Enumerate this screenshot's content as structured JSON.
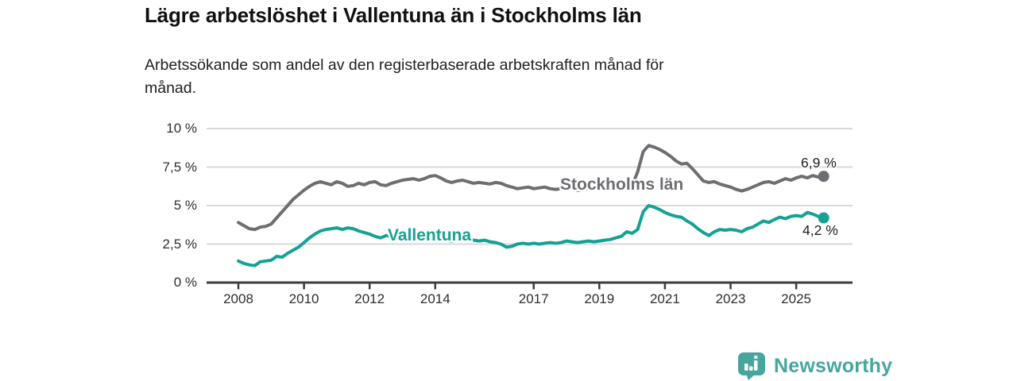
{
  "header": {
    "title": "Lägre arbetslöshet i Vallentuna än i Stockholms län",
    "subtitle_line1": "Arbetssökande som andel av den registerbaserade arbetskraften månad för",
    "subtitle_line2": "månad."
  },
  "colors": {
    "stockholm_line": "#6d6d72",
    "vallentuna_line": "#15a193",
    "axis": "#3c3c3c",
    "grid": "#d9d9d9",
    "text": "#1c1c1c",
    "brand_teal": "#45a69e"
  },
  "annotations": {
    "stockholm_series_label": "Stockholms län",
    "vallentuna_series_label": "Vallentuna",
    "stockholm_end_value_label": "6,9 %",
    "vallentuna_end_value_label": "4,2 %"
  },
  "footer": {
    "brand_name": "Newsworthy",
    "brand_icon": "bar-chart-speech-bubble-icon"
  },
  "chart_data": {
    "type": "line",
    "title": "Lägre arbetslöshet i Vallentuna än i Stockholms län",
    "subtitle": "Arbetssökande som andel av den registerbaserade arbetskraften månad för månad.",
    "xlabel": "",
    "ylabel": "",
    "grid": "horizontal",
    "legend_position": "inline-labels",
    "ylim": [
      0,
      10
    ],
    "xlim": [
      2007.05,
      2026.7
    ],
    "yticks": [
      {
        "value": 0,
        "label": "0 %"
      },
      {
        "value": 2.5,
        "label": "2,5 %"
      },
      {
        "value": 5,
        "label": "5 %"
      },
      {
        "value": 7.5,
        "label": "7,5 %"
      },
      {
        "value": 10,
        "label": "10 %"
      }
    ],
    "xticks": [
      {
        "value": 2008,
        "label": "2008"
      },
      {
        "value": 2010,
        "label": "2010"
      },
      {
        "value": 2012,
        "label": "2012"
      },
      {
        "value": 2014,
        "label": "2014"
      },
      {
        "value": 2017,
        "label": "2017"
      },
      {
        "value": 2019,
        "label": "2019"
      },
      {
        "value": 2021,
        "label": "2021"
      },
      {
        "value": 2023,
        "label": "2023"
      },
      {
        "value": 2025,
        "label": "2025"
      }
    ],
    "x_start": 2008.0,
    "x_step": 0.1667,
    "x_unit": "decimal year (monthly registry data, approx. bi-monthly samples)",
    "series": [
      {
        "name": "Stockholms län",
        "color": "#6d6d72",
        "end_value": 6.9,
        "end_label": "6,9 %",
        "y": [
          3.9,
          3.7,
          3.5,
          3.45,
          3.6,
          3.65,
          3.8,
          4.2,
          4.6,
          5.0,
          5.4,
          5.7,
          6.0,
          6.25,
          6.45,
          6.55,
          6.45,
          6.35,
          6.55,
          6.45,
          6.25,
          6.3,
          6.45,
          6.35,
          6.5,
          6.55,
          6.35,
          6.3,
          6.45,
          6.55,
          6.65,
          6.7,
          6.75,
          6.65,
          6.75,
          6.9,
          6.95,
          6.8,
          6.6,
          6.5,
          6.6,
          6.65,
          6.55,
          6.45,
          6.5,
          6.45,
          6.4,
          6.5,
          6.45,
          6.3,
          6.2,
          6.1,
          6.15,
          6.2,
          6.1,
          6.15,
          6.2,
          6.1,
          6.05,
          6.1,
          6.15,
          6.1,
          6.0,
          6.05,
          6.1,
          6.15,
          6.2,
          6.15,
          6.1,
          6.15,
          6.2,
          6.25,
          6.3,
          7.2,
          8.5,
          8.9,
          8.8,
          8.65,
          8.45,
          8.2,
          7.9,
          7.7,
          7.75,
          7.4,
          7.0,
          6.6,
          6.5,
          6.55,
          6.4,
          6.3,
          6.2,
          6.05,
          5.95,
          6.05,
          6.2,
          6.35,
          6.5,
          6.55,
          6.45,
          6.6,
          6.75,
          6.65,
          6.8,
          6.9,
          6.8,
          6.95,
          6.85,
          6.9
        ]
      },
      {
        "name": "Vallentuna",
        "color": "#15a193",
        "end_value": 4.2,
        "end_label": "4,2 %",
        "y": [
          1.4,
          1.25,
          1.15,
          1.1,
          1.35,
          1.4,
          1.45,
          1.7,
          1.65,
          1.9,
          2.1,
          2.3,
          2.6,
          2.9,
          3.15,
          3.35,
          3.45,
          3.5,
          3.55,
          3.45,
          3.55,
          3.5,
          3.35,
          3.25,
          3.15,
          3.0,
          2.9,
          3.05,
          3.0,
          2.95,
          3.05,
          2.95,
          2.9,
          2.95,
          2.85,
          2.9,
          2.85,
          2.8,
          2.75,
          2.7,
          2.8,
          2.75,
          2.8,
          2.75,
          2.7,
          2.75,
          2.65,
          2.6,
          2.5,
          2.3,
          2.35,
          2.5,
          2.55,
          2.5,
          2.55,
          2.5,
          2.55,
          2.6,
          2.55,
          2.6,
          2.7,
          2.65,
          2.6,
          2.65,
          2.7,
          2.65,
          2.7,
          2.75,
          2.8,
          2.9,
          3.0,
          3.3,
          3.2,
          3.45,
          4.6,
          5.0,
          4.9,
          4.75,
          4.55,
          4.4,
          4.3,
          4.25,
          4.0,
          3.8,
          3.5,
          3.25,
          3.05,
          3.3,
          3.45,
          3.4,
          3.45,
          3.4,
          3.3,
          3.5,
          3.6,
          3.8,
          4.0,
          3.9,
          4.1,
          4.25,
          4.15,
          4.3,
          4.35,
          4.3,
          4.55,
          4.45,
          4.3,
          4.2
        ]
      }
    ]
  }
}
